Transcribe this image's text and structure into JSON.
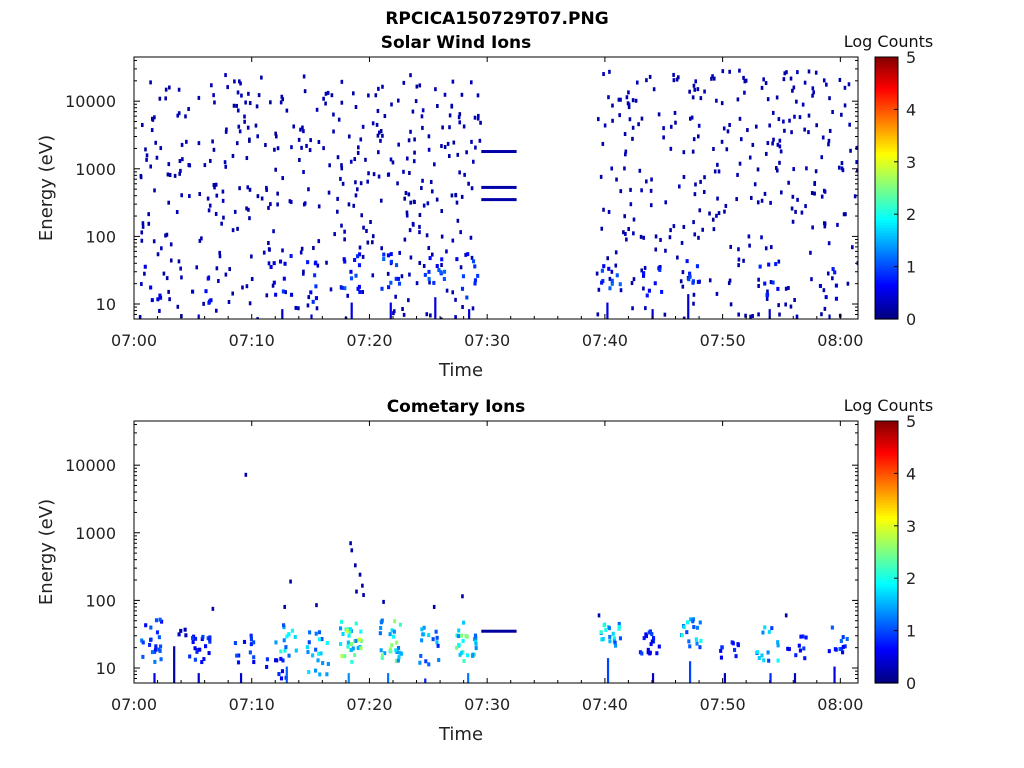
{
  "figure": {
    "title": "RPCICA150729T07.PNG"
  },
  "chart_data": [
    {
      "type": "heatmap",
      "title": "Solar Wind Ions",
      "xlabel": "Time",
      "ylabel": "Energy (eV)",
      "x_ticks": [
        "07:00",
        "07:10",
        "07:20",
        "07:30",
        "07:40",
        "07:50",
        "08:00"
      ],
      "x_range_minutes": [
        0,
        61.5
      ],
      "y_scale": "log",
      "y_range": [
        6,
        45000
      ],
      "y_ticks": [
        "10",
        "100",
        "1000",
        "10000"
      ],
      "colorbar": {
        "label": "Log Counts",
        "range": [
          0,
          5
        ],
        "ticks": [
          "0",
          "1",
          "2",
          "3",
          "4",
          "5"
        ],
        "colormap": "jet"
      },
      "data_gaps_minutes": [
        [
          30.0,
          39.5
        ]
      ],
      "constant_lines": [
        {
          "x_start": 29.5,
          "x_end": 32.5,
          "energy": 1800,
          "log_counts": 0.2
        },
        {
          "x_start": 29.5,
          "x_end": 32.5,
          "energy": 530,
          "log_counts": 0.2
        },
        {
          "x_start": 29.5,
          "x_end": 32.5,
          "energy": 350,
          "log_counts": 0.2
        }
      ],
      "clusters": [
        {
          "t": 1.5,
          "e_min": 7,
          "e_max": 40,
          "counts": 0.4,
          "n": 6
        },
        {
          "t": 5.8,
          "e_min": 10,
          "e_max": 30,
          "counts": 0.5,
          "n": 6
        },
        {
          "t": 12.5,
          "e_min": 12,
          "e_max": 55,
          "counts": 0.6,
          "n": 10
        },
        {
          "t": 15.0,
          "e_min": 10,
          "e_max": 50,
          "counts": 0.6,
          "n": 8
        },
        {
          "t": 18.3,
          "e_min": 15,
          "e_max": 55,
          "counts": 0.8,
          "n": 14
        },
        {
          "t": 21.8,
          "e_min": 15,
          "e_max": 55,
          "counts": 0.8,
          "n": 12
        },
        {
          "t": 25.5,
          "e_min": 18,
          "e_max": 50,
          "counts": 0.8,
          "n": 12
        },
        {
          "t": 28.3,
          "e_min": 12,
          "e_max": 55,
          "counts": 0.7,
          "n": 10
        },
        {
          "t": 40.5,
          "e_min": 15,
          "e_max": 40,
          "counts": 0.8,
          "n": 10
        },
        {
          "t": 44.0,
          "e_min": 12,
          "e_max": 40,
          "counts": 0.6,
          "n": 8
        },
        {
          "t": 47.2,
          "e_min": 20,
          "e_max": 50,
          "counts": 0.7,
          "n": 8
        },
        {
          "t": 54.0,
          "e_min": 12,
          "e_max": 40,
          "counts": 0.6,
          "n": 8
        },
        {
          "t": 59.0,
          "e_min": 10,
          "e_max": 35,
          "counts": 0.5,
          "n": 6
        }
      ],
      "background_scatter": [
        {
          "t_start": 0.5,
          "t_end": 29.5,
          "e_min": 5,
          "e_max": 25000,
          "counts": 0.05,
          "n": 420
        },
        {
          "t_start": 39.3,
          "t_end": 61.5,
          "e_min": 5,
          "e_max": 30000,
          "counts": 0.05,
          "n": 320
        }
      ]
    },
    {
      "type": "heatmap",
      "title": "Cometary Ions",
      "xlabel": "Time",
      "ylabel": "Energy (eV)",
      "x_ticks": [
        "07:00",
        "07:10",
        "07:20",
        "07:30",
        "07:40",
        "07:50",
        "08:00"
      ],
      "x_range_minutes": [
        0,
        61.5
      ],
      "y_scale": "log",
      "y_range": [
        6,
        45000
      ],
      "y_ticks": [
        "10",
        "100",
        "1000",
        "10000"
      ],
      "colorbar": {
        "label": "Log Counts",
        "range": [
          0,
          5
        ],
        "ticks": [
          "0",
          "1",
          "2",
          "3",
          "4",
          "5"
        ],
        "colormap": "jet"
      },
      "data_gaps_minutes": [
        [
          32.5,
          39.5
        ]
      ],
      "constant_lines": [
        {
          "x_start": 29.5,
          "x_end": 32.5,
          "energy": 35,
          "log_counts": 0.15
        }
      ],
      "clusters": [
        {
          "t": 1.5,
          "e_min": 12,
          "e_max": 55,
          "counts": 0.9,
          "n": 22
        },
        {
          "t": 3.5,
          "e_min": 30,
          "e_max": 40,
          "counts": 0.3,
          "n": 4
        },
        {
          "t": 5.6,
          "e_min": 12,
          "e_max": 30,
          "counts": 0.7,
          "n": 20
        },
        {
          "t": 9.3,
          "e_min": 12,
          "e_max": 40,
          "counts": 0.7,
          "n": 12
        },
        {
          "t": 12.0,
          "e_min": 6,
          "e_max": 20,
          "counts": 0.6,
          "n": 10
        },
        {
          "t": 12.9,
          "e_min": 15,
          "e_max": 45,
          "counts": 1.8,
          "n": 14
        },
        {
          "t": 15.6,
          "e_min": 8,
          "e_max": 35,
          "counts": 1.5,
          "n": 20
        },
        {
          "t": 18.4,
          "e_min": 12,
          "e_max": 50,
          "counts": 2.2,
          "n": 32
        },
        {
          "t": 21.8,
          "e_min": 12,
          "e_max": 55,
          "counts": 2.0,
          "n": 28
        },
        {
          "t": 25.0,
          "e_min": 10,
          "e_max": 40,
          "counts": 1.3,
          "n": 16
        },
        {
          "t": 28.2,
          "e_min": 12,
          "e_max": 55,
          "counts": 2.0,
          "n": 26
        },
        {
          "t": 40.5,
          "e_min": 20,
          "e_max": 45,
          "counts": 1.6,
          "n": 20
        },
        {
          "t": 43.8,
          "e_min": 12,
          "e_max": 35,
          "counts": 0.7,
          "n": 18
        },
        {
          "t": 47.3,
          "e_min": 18,
          "e_max": 55,
          "counts": 1.6,
          "n": 18
        },
        {
          "t": 50.5,
          "e_min": 12,
          "e_max": 30,
          "counts": 0.6,
          "n": 10
        },
        {
          "t": 53.8,
          "e_min": 12,
          "e_max": 40,
          "counts": 1.4,
          "n": 14
        },
        {
          "t": 56.4,
          "e_min": 12,
          "e_max": 30,
          "counts": 0.6,
          "n": 10
        },
        {
          "t": 59.8,
          "e_min": 15,
          "e_max": 40,
          "counts": 0.8,
          "n": 12
        }
      ],
      "points": [
        {
          "t": 9.5,
          "energy": 7200,
          "counts": 0.1
        },
        {
          "t": 13.3,
          "energy": 190,
          "counts": 0.1
        },
        {
          "t": 12.8,
          "energy": 80,
          "counts": 0.1
        },
        {
          "t": 15.5,
          "energy": 85,
          "counts": 0.1
        },
        {
          "t": 18.4,
          "energy": 700,
          "counts": 0.1
        },
        {
          "t": 18.5,
          "energy": 550,
          "counts": 0.1
        },
        {
          "t": 18.8,
          "energy": 330,
          "counts": 0.1
        },
        {
          "t": 19.2,
          "energy": 240,
          "counts": 0.1
        },
        {
          "t": 19.4,
          "energy": 165,
          "counts": 0.1
        },
        {
          "t": 18.9,
          "energy": 135,
          "counts": 0.1
        },
        {
          "t": 19.5,
          "energy": 120,
          "counts": 0.1
        },
        {
          "t": 21.2,
          "energy": 95,
          "counts": 0.1
        },
        {
          "t": 25.5,
          "energy": 80,
          "counts": 0.1
        },
        {
          "t": 27.9,
          "energy": 115,
          "counts": 0.1
        },
        {
          "t": 6.7,
          "energy": 75,
          "counts": 0.1
        },
        {
          "t": 55.4,
          "energy": 60,
          "counts": 0.1
        },
        {
          "t": 39.5,
          "energy": 60,
          "counts": 0.1
        }
      ]
    }
  ]
}
